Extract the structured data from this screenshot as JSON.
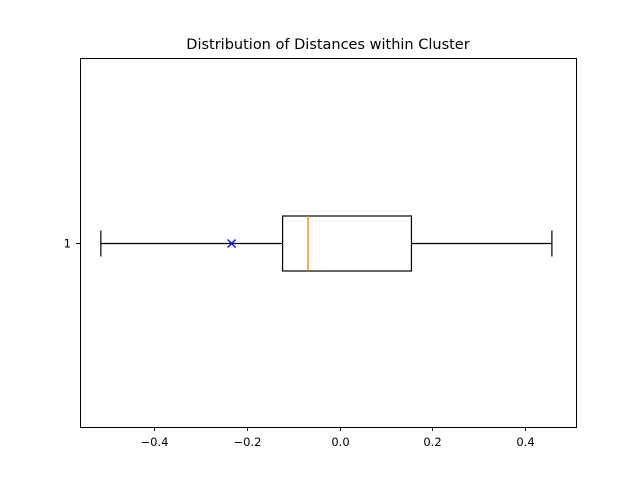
{
  "chart_data": {
    "type": "boxplot",
    "title": "Distribution of Distances within Cluster",
    "orientation": "horizontal",
    "xlabel": "",
    "ylabel": "",
    "xlim": [
      -0.56,
      0.51
    ],
    "x_ticks": [
      -0.4,
      -0.2,
      0.0,
      0.2,
      0.4
    ],
    "x_tick_labels": [
      "−0.4",
      "−0.2",
      "0.0",
      "0.2",
      "0.4"
    ],
    "categories": [
      "1"
    ],
    "boxes": [
      {
        "category": "1",
        "whisker_low": -0.515,
        "q1": -0.123,
        "median": -0.068,
        "q3": 0.155,
        "whisker_high": 0.458,
        "marker_x": -0.233
      }
    ],
    "grid": false,
    "colors": {
      "box": "#000000",
      "median": "#ff7f0e",
      "marker": "#0000ff",
      "axes": "#000000"
    }
  }
}
